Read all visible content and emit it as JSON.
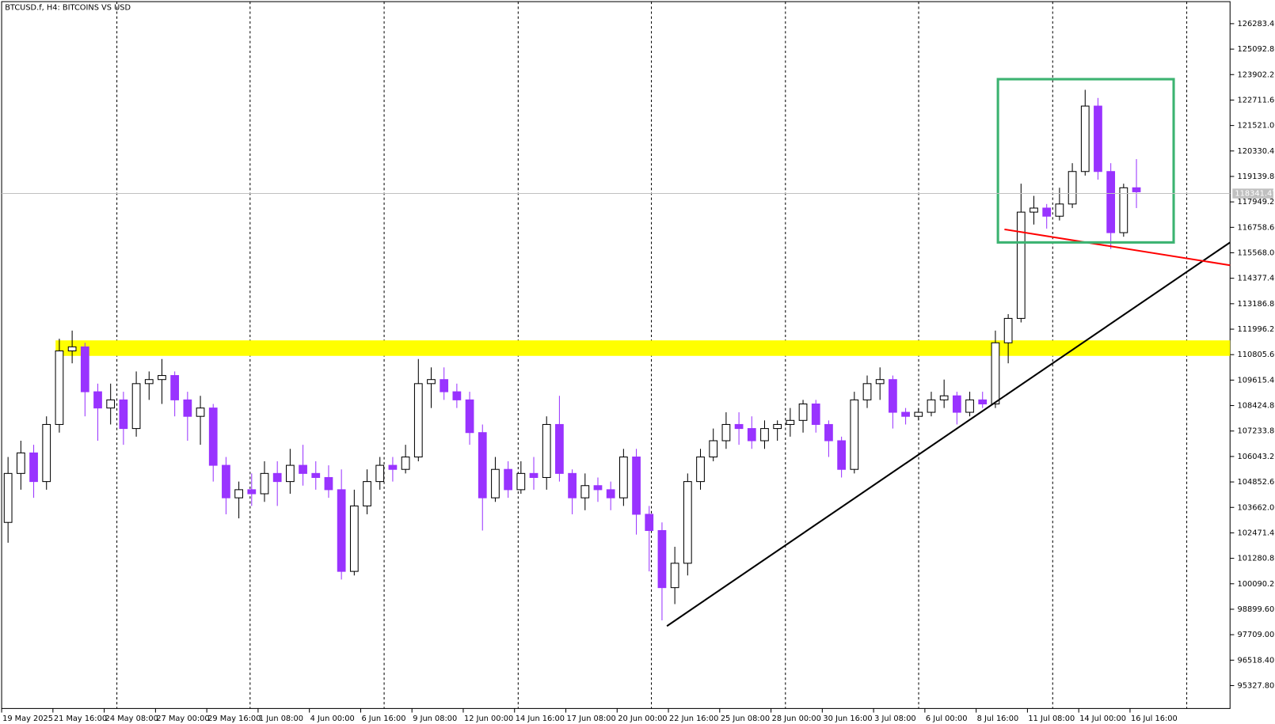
{
  "chart_data": {
    "type": "candlestick",
    "title": "BTCUSD.f, H4:  BITCOINS VS USD",
    "up_color": "#000000",
    "up_fill": "#ffffff",
    "down_color": "#9933ff",
    "xlim": [
      0,
      95.8
    ],
    "xticks": [
      {
        "value": 0,
        "label": "19 May 2025"
      },
      {
        "value": 4,
        "label": "21 May 16:00"
      },
      {
        "value": 8,
        "label": "24 May 08:00"
      },
      {
        "value": 12,
        "label": "27 May 00:00"
      },
      {
        "value": 16,
        "label": "29 May 16:00"
      },
      {
        "value": 20,
        "label": "1 Jun 08:00"
      },
      {
        "value": 24,
        "label": "4 Jun 00:00"
      },
      {
        "value": 28,
        "label": "6 Jun 16:00"
      },
      {
        "value": 32,
        "label": "9 Jun 08:00"
      },
      {
        "value": 36,
        "label": "12 Jun 00:00"
      },
      {
        "value": 40,
        "label": "14 Jun 16:00"
      },
      {
        "value": 44,
        "label": "17 Jun 08:00"
      },
      {
        "value": 48,
        "label": "20 Jun 00:00"
      },
      {
        "value": 52,
        "label": "22 Jun 16:00"
      },
      {
        "value": 56,
        "label": "25 Jun 08:00"
      },
      {
        "value": 60,
        "label": "28 Jun 00:00"
      },
      {
        "value": 64,
        "label": "30 Jun 16:00"
      },
      {
        "value": 68,
        "label": "3 Jul 08:00"
      },
      {
        "value": 72,
        "label": "6 Jul 00:00"
      },
      {
        "value": 76,
        "label": "8 Jul 16:00"
      },
      {
        "value": 80,
        "label": "11 Jul 08:00"
      },
      {
        "value": 84,
        "label": "14 Jul 00:00"
      },
      {
        "value": 88,
        "label": "16 Jul 16:00"
      }
    ],
    "ylim": [
      94258,
      127314
    ],
    "yticks": [
      {
        "value": 126283.4,
        "label": "126283.40"
      },
      {
        "value": 125092.8,
        "label": "125092.80"
      },
      {
        "value": 123902.2,
        "label": "123902.20"
      },
      {
        "value": 122711.6,
        "label": "122711.60"
      },
      {
        "value": 121521,
        "label": "121521.00"
      },
      {
        "value": 120330.4,
        "label": "120330.40"
      },
      {
        "value": 119139.8,
        "label": "119139.80"
      },
      {
        "value": 117949.2,
        "label": "117949.20"
      },
      {
        "value": 116758.6,
        "label": "116758.60"
      },
      {
        "value": 115568,
        "label": "115568.00"
      },
      {
        "value": 114377.4,
        "label": "114377.40"
      },
      {
        "value": 113186.8,
        "label": "113186.80"
      },
      {
        "value": 111996.2,
        "label": "111996.20"
      },
      {
        "value": 110805.6,
        "label": "110805.60"
      },
      {
        "value": 109615.4,
        "label": "109615.40"
      },
      {
        "value": 108424.8,
        "label": "108424.80"
      },
      {
        "value": 107233.8,
        "label": "107233.80"
      },
      {
        "value": 106043.2,
        "label": "106043.20"
      },
      {
        "value": 104852.6,
        "label": "104852.60"
      },
      {
        "value": 103662,
        "label": "103662.00"
      },
      {
        "value": 102471.4,
        "label": "102471.40"
      },
      {
        "value": 101280.8,
        "label": "101280.80"
      },
      {
        "value": 100090.2,
        "label": "100090.20"
      },
      {
        "value": 98899.6,
        "label": "98899.60"
      },
      {
        "value": 97709,
        "label": "97709.00"
      },
      {
        "value": 96518.4,
        "label": "96518.40"
      },
      {
        "value": 95327.8,
        "label": "95327.80"
      }
    ],
    "current_price": 118341.47,
    "open": [
      102960,
      105250,
      106210,
      104870,
      107540,
      110980,
      111170,
      109070,
      108310,
      108690,
      107350,
      109450,
      109640,
      109830,
      108690,
      107920,
      108310,
      105630,
      104110,
      104490,
      104300,
      105250,
      104870,
      105630,
      105250,
      105060,
      104490,
      100670,
      103730,
      104870,
      105630,
      105440,
      106020,
      109450,
      109640,
      109070,
      108690,
      107160,
      104110,
      105440,
      104490,
      105250,
      105060,
      107540,
      105250,
      104110,
      104680,
      104490,
      104110,
      106020,
      103340,
      102580,
      99910,
      101050,
      104870,
      106020,
      106780,
      107540,
      107350,
      106780,
      107350,
      107540,
      107730,
      108500,
      107540,
      106780,
      105440,
      108690,
      109450,
      109640,
      108110,
      107920,
      108110,
      108690,
      108880,
      108110,
      108690,
      108500,
      111360,
      112500,
      117470,
      117660,
      117280,
      117850,
      119370,
      122430,
      119370,
      116510,
      118610
    ],
    "high": [
      106020,
      106780,
      106590,
      107920,
      111550,
      111930,
      111360,
      109450,
      109450,
      109070,
      110020,
      110020,
      110600,
      110020,
      109070,
      108880,
      108500,
      106020,
      104870,
      105250,
      105820,
      105820,
      106400,
      106590,
      105820,
      105630,
      105440,
      104490,
      105440,
      106020,
      106020,
      106590,
      110600,
      110210,
      110210,
      109450,
      109070,
      107540,
      106020,
      105820,
      105820,
      106020,
      107920,
      108880,
      105440,
      105250,
      105060,
      104870,
      106400,
      106400,
      103730,
      102960,
      101820,
      105250,
      106400,
      107350,
      108110,
      108110,
      107920,
      107730,
      107730,
      108310,
      108690,
      108690,
      107730,
      106970,
      109070,
      109830,
      110210,
      109830,
      108310,
      108310,
      109070,
      109640,
      109070,
      109070,
      109070,
      111930,
      112700,
      118800,
      118230,
      117850,
      118610,
      119760,
      123190,
      122810,
      119760,
      118800,
      119950
    ],
    "low": [
      102010,
      104490,
      104110,
      104490,
      107160,
      110400,
      107920,
      106780,
      107540,
      106590,
      106970,
      108690,
      108500,
      107920,
      106780,
      106590,
      104870,
      103340,
      103150,
      103730,
      103920,
      103730,
      104300,
      104680,
      104490,
      104110,
      100290,
      100480,
      103340,
      104490,
      104870,
      105250,
      105820,
      108310,
      108690,
      108310,
      106590,
      102580,
      103920,
      104110,
      104300,
      104490,
      104490,
      104870,
      103340,
      103530,
      103920,
      103530,
      103730,
      102390,
      100670,
      98380,
      99140,
      100480,
      104490,
      105820,
      106400,
      106590,
      106400,
      106400,
      106780,
      106970,
      107160,
      107160,
      106020,
      105060,
      105250,
      108310,
      108690,
      107350,
      107540,
      107730,
      107920,
      108310,
      107540,
      107920,
      108310,
      108310,
      110400,
      112310,
      116890,
      116700,
      117080,
      117660,
      119180,
      118990,
      115750,
      116320,
      117660
    ],
    "close": [
      105250,
      106210,
      104870,
      107540,
      110980,
      111170,
      109070,
      108310,
      108690,
      107350,
      109450,
      109640,
      109830,
      108690,
      107920,
      108310,
      105630,
      104110,
      104490,
      104300,
      105250,
      104870,
      105630,
      105250,
      105060,
      104490,
      100670,
      103730,
      104870,
      105630,
      105440,
      106020,
      109450,
      109640,
      109070,
      108690,
      107160,
      104110,
      105440,
      104490,
      105250,
      105060,
      107540,
      105250,
      104110,
      104680,
      104490,
      104110,
      106020,
      103340,
      102580,
      99910,
      101050,
      104870,
      106020,
      106780,
      107540,
      107350,
      106780,
      107350,
      107540,
      107730,
      108500,
      107540,
      106780,
      105440,
      108690,
      109450,
      109640,
      108110,
      107920,
      108110,
      108690,
      108880,
      108110,
      108690,
      108500,
      111360,
      112500,
      117470,
      117660,
      117280,
      117850,
      119370,
      122430,
      119370,
      116510,
      118610,
      118420
    ]
  }
}
